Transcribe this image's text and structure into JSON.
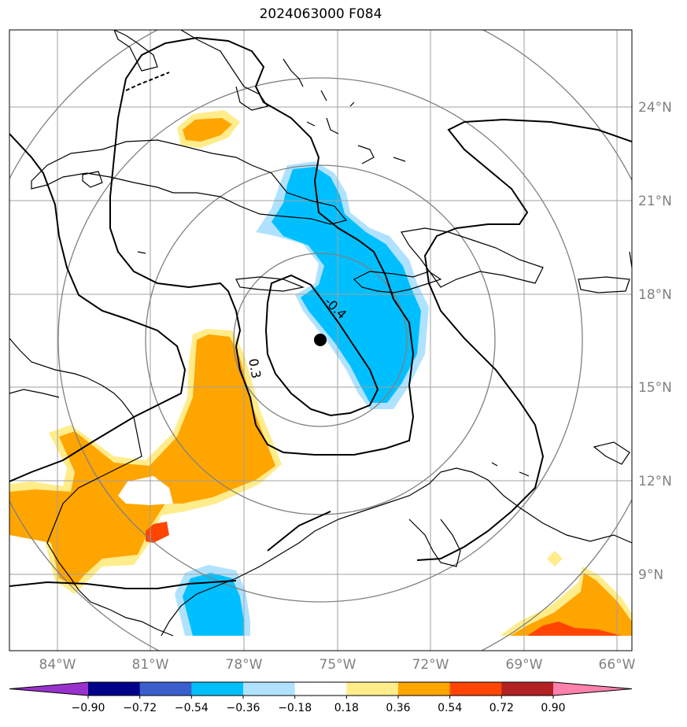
{
  "title": "2024063000 F084",
  "map": {
    "lon_range": [
      -86.5,
      -65.5
    ],
    "lat_range": [
      6.5,
      26.5
    ],
    "center_marker": {
      "lon": -75.5,
      "lat": 16.5
    },
    "lat_labels": [
      "24°N",
      "21°N",
      "18°N",
      "15°N",
      "12°N",
      "9°N"
    ],
    "lon_labels": [
      "84°W",
      "81°W",
      "78°W",
      "75°W",
      "72°W",
      "69°W",
      "66°W"
    ],
    "contour_labels": [
      "-0.4",
      "0.3"
    ],
    "colors": {
      "ocean": "#ffffff",
      "coast": "#000000",
      "grid": "#a0a0a0",
      "range_rings": "#808080",
      "contour": "#000000"
    }
  },
  "colorbar": {
    "levels": [
      "−0.90",
      "−0.72",
      "−0.54",
      "−0.36",
      "−0.18",
      "0.18",
      "0.36",
      "0.54",
      "0.72",
      "0.90"
    ],
    "colors": [
      "#9932cc",
      "#00008b",
      "#3a5fcd",
      "#00bfff",
      "#b0e2ff",
      "#ffffff",
      "#ffec8b",
      "#ffa500",
      "#ff4500",
      "#b22222",
      "#ff82ab"
    ]
  }
}
